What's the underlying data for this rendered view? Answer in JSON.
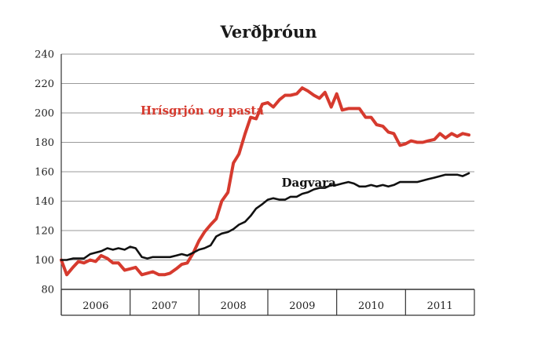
{
  "chart_data": {
    "type": "line",
    "title": "Verðþróun",
    "xlabel": "",
    "ylabel": "",
    "ylim": [
      80,
      240
    ],
    "yticks": [
      80,
      100,
      120,
      140,
      160,
      180,
      200,
      220,
      240
    ],
    "x_categories": [
      "2006",
      "2007",
      "2008",
      "2009",
      "2010",
      "2011"
    ],
    "xlim": [
      2006.0,
      2012.0
    ],
    "grid": "horizontal",
    "legend": "inline labels",
    "series": [
      {
        "name": "Hrísgrjón og pasta",
        "color": "#d63a2e",
        "label_at": [
          2007.15,
          199
        ],
        "x": [
          2006.0,
          2006.08,
          2006.17,
          2006.25,
          2006.33,
          2006.42,
          2006.5,
          2006.58,
          2006.67,
          2006.75,
          2006.83,
          2006.92,
          2007.0,
          2007.08,
          2007.17,
          2007.25,
          2007.33,
          2007.42,
          2007.5,
          2007.58,
          2007.67,
          2007.75,
          2007.83,
          2007.92,
          2008.0,
          2008.08,
          2008.17,
          2008.25,
          2008.33,
          2008.42,
          2008.5,
          2008.58,
          2008.67,
          2008.75,
          2008.83,
          2008.92,
          2009.0,
          2009.08,
          2009.17,
          2009.25,
          2009.33,
          2009.42,
          2009.5,
          2009.58,
          2009.67,
          2009.75,
          2009.83,
          2009.92,
          2010.0,
          2010.08,
          2010.17,
          2010.25,
          2010.33,
          2010.42,
          2010.5,
          2010.58,
          2010.67,
          2010.75,
          2010.83,
          2010.92,
          2011.0,
          2011.08,
          2011.17,
          2011.25,
          2011.33,
          2011.42,
          2011.5,
          2011.58,
          2011.67,
          2011.75,
          2011.83,
          2011.92
        ],
        "values": [
          100,
          90,
          95,
          99,
          98,
          100,
          99,
          103,
          101,
          98,
          98,
          93,
          94,
          95,
          90,
          91,
          92,
          90,
          90,
          91,
          94,
          97,
          98,
          105,
          113,
          119,
          124,
          128,
          140,
          146,
          166,
          172,
          186,
          197,
          196,
          206,
          207,
          204,
          209,
          212,
          212,
          213,
          217,
          215,
          212,
          210,
          214,
          204,
          213,
          202,
          203,
          203,
          203,
          197,
          197,
          192,
          191,
          187,
          186,
          178,
          179,
          181,
          180,
          180,
          181,
          182,
          186,
          183,
          186,
          184,
          186,
          185
        ]
      },
      {
        "name": "Dagvara",
        "color": "#111111",
        "label_at": [
          2009.2,
          150
        ],
        "x": [
          2006.0,
          2006.08,
          2006.17,
          2006.25,
          2006.33,
          2006.42,
          2006.5,
          2006.58,
          2006.67,
          2006.75,
          2006.83,
          2006.92,
          2007.0,
          2007.08,
          2007.17,
          2007.25,
          2007.33,
          2007.42,
          2007.5,
          2007.58,
          2007.67,
          2007.75,
          2007.83,
          2007.92,
          2008.0,
          2008.08,
          2008.17,
          2008.25,
          2008.33,
          2008.42,
          2008.5,
          2008.58,
          2008.67,
          2008.75,
          2008.83,
          2008.92,
          2009.0,
          2009.08,
          2009.17,
          2009.25,
          2009.33,
          2009.42,
          2009.5,
          2009.58,
          2009.67,
          2009.75,
          2009.83,
          2009.92,
          2010.0,
          2010.08,
          2010.17,
          2010.25,
          2010.33,
          2010.42,
          2010.5,
          2010.58,
          2010.67,
          2010.75,
          2010.83,
          2010.92,
          2011.0,
          2011.08,
          2011.17,
          2011.25,
          2011.33,
          2011.42,
          2011.5,
          2011.58,
          2011.67,
          2011.75,
          2011.83,
          2011.92
        ],
        "values": [
          100,
          100,
          101,
          101,
          101,
          104,
          105,
          106,
          108,
          107,
          108,
          107,
          109,
          108,
          102,
          101,
          102,
          102,
          102,
          102,
          103,
          104,
          103,
          105,
          107,
          108,
          110,
          116,
          118,
          119,
          121,
          124,
          126,
          130,
          135,
          138,
          141,
          142,
          141,
          141,
          143,
          143,
          145,
          146,
          148,
          149,
          149,
          151,
          151,
          152,
          153,
          152,
          150,
          150,
          151,
          150,
          151,
          150,
          151,
          153,
          153,
          153,
          153,
          154,
          155,
          156,
          157,
          158,
          158,
          158,
          157,
          159
        ]
      }
    ]
  }
}
